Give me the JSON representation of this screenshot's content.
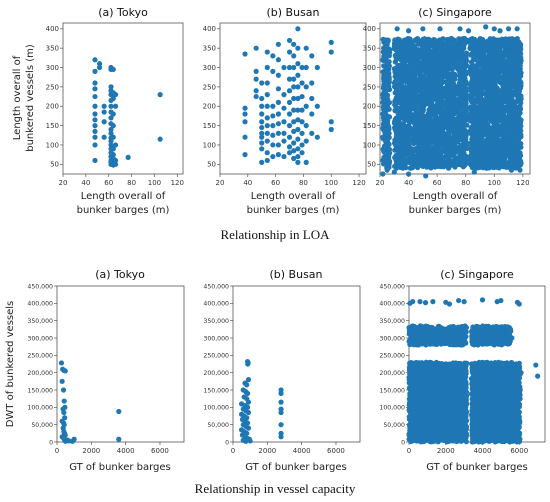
{
  "captions": {
    "top": "Relationship in LOA",
    "bottom": "Relationship in vessel capacity"
  },
  "colors": {
    "series": "#1f77b4"
  },
  "loa": {
    "ylabel_line1": "Length overall of",
    "ylabel_line2": "bunkered vessels (m)",
    "xlabel_line1": "Length overall of",
    "xlabel_line2": "bunker barges (m)",
    "xticks": [
      "20",
      "40",
      "60",
      "80",
      "100",
      "120"
    ],
    "yticks": [
      "50",
      "100",
      "150",
      "200",
      "250",
      "300",
      "350",
      "400"
    ]
  },
  "capacity": {
    "ylabel": "DWT of bunkered vessels",
    "xlabel": "GT of bunker barges",
    "xticks": [
      "0",
      "2000",
      "4000",
      "6000"
    ],
    "yticks": [
      "0",
      "50,000",
      "100,000",
      "150,000",
      "200,000",
      "250,000",
      "300,000",
      "350,000",
      "400,000",
      "450,000"
    ]
  },
  "chart_data": [
    {
      "id": "loa-tokyo",
      "type": "scatter",
      "title": "(a) Tokyo",
      "xlim": [
        20,
        125
      ],
      "ylim": [
        25,
        415
      ],
      "points": [
        [
          48,
          320
        ],
        [
          48,
          290
        ],
        [
          48,
          260
        ],
        [
          48,
          245
        ],
        [
          48,
          225
        ],
        [
          48,
          200
        ],
        [
          48,
          180
        ],
        [
          48,
          165
        ],
        [
          48,
          150
        ],
        [
          48,
          135
        ],
        [
          48,
          120
        ],
        [
          48,
          100
        ],
        [
          48,
          60
        ],
        [
          52,
          310
        ],
        [
          52,
          300
        ],
        [
          56,
          200
        ],
        [
          56,
          185
        ],
        [
          56,
          160
        ],
        [
          56,
          120
        ],
        [
          62,
          300
        ],
        [
          62,
          295
        ],
        [
          62,
          250
        ],
        [
          62,
          240
        ],
        [
          62,
          230
        ],
        [
          62,
          215
        ],
        [
          62,
          200
        ],
        [
          62,
          185
        ],
        [
          62,
          170
        ],
        [
          62,
          155
        ],
        [
          62,
          140
        ],
        [
          62,
          130
        ],
        [
          62,
          118
        ],
        [
          62,
          110
        ],
        [
          62,
          100
        ],
        [
          62,
          90
        ],
        [
          62,
          80
        ],
        [
          62,
          70
        ],
        [
          62,
          60
        ],
        [
          62,
          55
        ],
        [
          62,
          50
        ],
        [
          64,
          295
        ],
        [
          64,
          235
        ],
        [
          64,
          220
        ],
        [
          64,
          180
        ],
        [
          64,
          150
        ],
        [
          64,
          120
        ],
        [
          64,
          90
        ],
        [
          64,
          75
        ],
        [
          64,
          65
        ],
        [
          64,
          55
        ],
        [
          64,
          48
        ],
        [
          66,
          230
        ],
        [
          66,
          200
        ],
        [
          66,
          100
        ],
        [
          66,
          60
        ],
        [
          66,
          50
        ],
        [
          77,
          68
        ],
        [
          105,
          230
        ],
        [
          105,
          115
        ]
      ]
    },
    {
      "id": "loa-busan",
      "type": "scatter",
      "title": "(b) Busan",
      "xlim": [
        20,
        125
      ],
      "ylim": [
        25,
        415
      ],
      "points": [
        [
          38,
          335
        ],
        [
          38,
          195
        ],
        [
          38,
          180
        ],
        [
          38,
          160
        ],
        [
          38,
          120
        ],
        [
          38,
          75
        ],
        [
          46,
          350
        ],
        [
          46,
          290
        ],
        [
          46,
          270
        ],
        [
          46,
          240
        ],
        [
          46,
          225
        ],
        [
          50,
          260
        ],
        [
          50,
          220
        ],
        [
          50,
          200
        ],
        [
          50,
          180
        ],
        [
          50,
          160
        ],
        [
          50,
          145
        ],
        [
          50,
          130
        ],
        [
          50,
          120
        ],
        [
          50,
          105
        ],
        [
          50,
          90
        ],
        [
          50,
          55
        ],
        [
          54,
          340
        ],
        [
          54,
          300
        ],
        [
          54,
          260
        ],
        [
          54,
          230
        ],
        [
          54,
          200
        ],
        [
          54,
          170
        ],
        [
          54,
          150
        ],
        [
          54,
          130
        ],
        [
          54,
          110
        ],
        [
          54,
          80
        ],
        [
          54,
          60
        ],
        [
          58,
          330
        ],
        [
          58,
          290
        ],
        [
          58,
          200
        ],
        [
          58,
          175
        ],
        [
          58,
          150
        ],
        [
          58,
          125
        ],
        [
          58,
          100
        ],
        [
          58,
          70
        ],
        [
          62,
          360
        ],
        [
          62,
          320
        ],
        [
          62,
          280
        ],
        [
          62,
          245
        ],
        [
          62,
          210
        ],
        [
          62,
          180
        ],
        [
          62,
          155
        ],
        [
          62,
          130
        ],
        [
          62,
          100
        ],
        [
          62,
          75
        ],
        [
          66,
          300
        ],
        [
          66,
          230
        ],
        [
          66,
          195
        ],
        [
          66,
          160
        ],
        [
          66,
          130
        ],
        [
          66,
          110
        ],
        [
          66,
          70
        ],
        [
          70,
          370
        ],
        [
          70,
          340
        ],
        [
          70,
          300
        ],
        [
          70,
          270
        ],
        [
          70,
          240
        ],
        [
          70,
          210
        ],
        [
          70,
          180
        ],
        [
          70,
          150
        ],
        [
          70,
          120
        ],
        [
          70,
          95
        ],
        [
          70,
          80
        ],
        [
          73,
          360
        ],
        [
          73,
          330
        ],
        [
          73,
          300
        ],
        [
          73,
          270
        ],
        [
          73,
          250
        ],
        [
          73,
          220
        ],
        [
          73,
          190
        ],
        [
          73,
          160
        ],
        [
          73,
          135
        ],
        [
          73,
          105
        ],
        [
          73,
          85
        ],
        [
          73,
          65
        ],
        [
          76,
          400
        ],
        [
          76,
          350
        ],
        [
          76,
          310
        ],
        [
          76,
          280
        ],
        [
          76,
          250
        ],
        [
          76,
          220
        ],
        [
          76,
          190
        ],
        [
          76,
          165
        ],
        [
          76,
          140
        ],
        [
          76,
          115
        ],
        [
          76,
          90
        ],
        [
          76,
          70
        ],
        [
          76,
          55
        ],
        [
          79,
          300
        ],
        [
          79,
          260
        ],
        [
          79,
          225
        ],
        [
          79,
          190
        ],
        [
          79,
          160
        ],
        [
          79,
          130
        ],
        [
          79,
          100
        ],
        [
          79,
          80
        ],
        [
          82,
          350
        ],
        [
          82,
          300
        ],
        [
          82,
          250
        ],
        [
          82,
          200
        ],
        [
          82,
          150
        ],
        [
          82,
          110
        ],
        [
          82,
          55
        ],
        [
          86,
          330
        ],
        [
          86,
          260
        ],
        [
          86,
          220
        ],
        [
          86,
          180
        ],
        [
          86,
          130
        ],
        [
          90,
          300
        ],
        [
          90,
          200
        ],
        [
          90,
          120
        ],
        [
          100,
          365
        ],
        [
          100,
          340
        ],
        [
          100,
          160
        ],
        [
          100,
          140
        ]
      ]
    },
    {
      "id": "loa-singapore",
      "type": "scatter",
      "title": "(c) Singapore",
      "xlim": [
        20,
        125
      ],
      "ylim": [
        25,
        415
      ],
      "bands": [
        [
          22,
          26
        ],
        [
          30,
          37
        ],
        [
          38,
          46
        ],
        [
          47,
          57
        ],
        [
          58,
          64
        ],
        [
          66,
          72
        ],
        [
          74,
          80
        ],
        [
          83,
          90
        ],
        [
          90,
          102
        ],
        [
          103,
          108
        ],
        [
          110,
          118
        ]
      ],
      "points": [
        [
          22,
          320
        ],
        [
          22,
          230
        ],
        [
          22,
          180
        ],
        [
          22,
          120
        ],
        [
          22,
          60
        ],
        [
          22,
          25
        ],
        [
          25,
          360
        ],
        [
          25,
          280
        ],
        [
          25,
          140
        ],
        [
          25,
          35
        ],
        [
          30,
          30
        ],
        [
          32,
          400
        ],
        [
          36,
          40
        ],
        [
          40,
          395
        ],
        [
          40,
          25
        ],
        [
          50,
          400
        ],
        [
          52,
          20
        ],
        [
          62,
          400
        ],
        [
          68,
          40
        ],
        [
          76,
          400
        ],
        [
          82,
          395
        ],
        [
          86,
          30
        ],
        [
          94,
          405
        ],
        [
          100,
          400
        ],
        [
          104,
          395
        ],
        [
          110,
          400
        ],
        [
          112,
          35
        ],
        [
          116,
          400
        ],
        [
          118,
          35
        ]
      ]
    },
    {
      "id": "cap-tokyo",
      "type": "scatter",
      "title": "(a) Tokyo",
      "xlim": [
        0,
        7400
      ],
      "ylim": [
        0,
        450000
      ],
      "points": [
        [
          260,
          228000
        ],
        [
          330,
          210000
        ],
        [
          400,
          207000
        ],
        [
          480,
          205000
        ],
        [
          300,
          175000
        ],
        [
          380,
          150000
        ],
        [
          420,
          118000
        ],
        [
          460,
          100000
        ],
        [
          350,
          95000
        ],
        [
          400,
          85000
        ],
        [
          450,
          70000
        ],
        [
          300,
          60000
        ],
        [
          380,
          55000
        ],
        [
          420,
          50000
        ],
        [
          360,
          40000
        ],
        [
          400,
          30000
        ],
        [
          440,
          25000
        ],
        [
          480,
          20000
        ],
        [
          300,
          15000
        ],
        [
          400,
          10000
        ],
        [
          450,
          5000
        ],
        [
          500,
          2000
        ],
        [
          600,
          6000
        ],
        [
          700,
          3000
        ],
        [
          900,
          2000
        ],
        [
          1000,
          8000
        ],
        [
          3600,
          88000
        ],
        [
          3600,
          8000
        ]
      ]
    },
    {
      "id": "cap-busan",
      "type": "scatter",
      "title": "(b) Busan",
      "xlim": [
        0,
        7400
      ],
      "ylim": [
        0,
        450000
      ],
      "points": [
        [
          850,
          232000
        ],
        [
          880,
          228000
        ],
        [
          860,
          225000
        ],
        [
          900,
          180000
        ],
        [
          700,
          170000
        ],
        [
          800,
          165000
        ],
        [
          600,
          150000
        ],
        [
          750,
          145000
        ],
        [
          850,
          140000
        ],
        [
          650,
          130000
        ],
        [
          800,
          125000
        ],
        [
          900,
          115000
        ],
        [
          500,
          110000
        ],
        [
          700,
          105000
        ],
        [
          850,
          100000
        ],
        [
          600,
          95000
        ],
        [
          750,
          90000
        ],
        [
          900,
          85000
        ],
        [
          500,
          80000
        ],
        [
          650,
          75000
        ],
        [
          800,
          70000
        ],
        [
          550,
          65000
        ],
        [
          700,
          60000
        ],
        [
          850,
          55000
        ],
        [
          600,
          50000
        ],
        [
          750,
          45000
        ],
        [
          900,
          40000
        ],
        [
          500,
          35000
        ],
        [
          650,
          30000
        ],
        [
          800,
          25000
        ],
        [
          550,
          20000
        ],
        [
          700,
          15000
        ],
        [
          850,
          10000
        ],
        [
          600,
          5000
        ],
        [
          750,
          2000
        ],
        [
          950,
          8000
        ],
        [
          1000,
          3000
        ],
        [
          2800,
          150000
        ],
        [
          2800,
          140000
        ],
        [
          2800,
          115000
        ],
        [
          2800,
          95000
        ],
        [
          2800,
          85000
        ],
        [
          2800,
          50000
        ],
        [
          2800,
          25000
        ],
        [
          2800,
          15000
        ]
      ]
    },
    {
      "id": "cap-singapore",
      "type": "scatter",
      "title": "(c) Singapore",
      "xlim": [
        0,
        7400
      ],
      "ylim": [
        0,
        450000
      ],
      "points": [
        [
          50,
          400000
        ],
        [
          200,
          405000
        ],
        [
          600,
          405000
        ],
        [
          900,
          402000
        ],
        [
          1300,
          405000
        ],
        [
          2000,
          403000
        ],
        [
          2200,
          398000
        ],
        [
          2700,
          408000
        ],
        [
          3000,
          405000
        ],
        [
          4000,
          410000
        ],
        [
          4800,
          405000
        ],
        [
          5000,
          408000
        ],
        [
          5900,
          403000
        ],
        [
          6000,
          398000
        ],
        [
          5600,
          300000
        ],
        [
          6100,
          200000
        ],
        [
          6050,
          150000
        ],
        [
          6900,
          222000
        ],
        [
          7000,
          190000
        ],
        [
          5600,
          100000
        ],
        [
          6000,
          20000
        ]
      ],
      "bands": [
        {
          "x": [
            0,
            3100
          ],
          "y": [
            0,
            230000
          ]
        },
        {
          "x": [
            0,
            3100
          ],
          "y": [
            280000,
            330000
          ]
        },
        {
          "x": [
            3400,
            6050
          ],
          "y": [
            0,
            230000
          ]
        },
        {
          "x": [
            3400,
            5500
          ],
          "y": [
            280000,
            330000
          ]
        }
      ]
    }
  ]
}
